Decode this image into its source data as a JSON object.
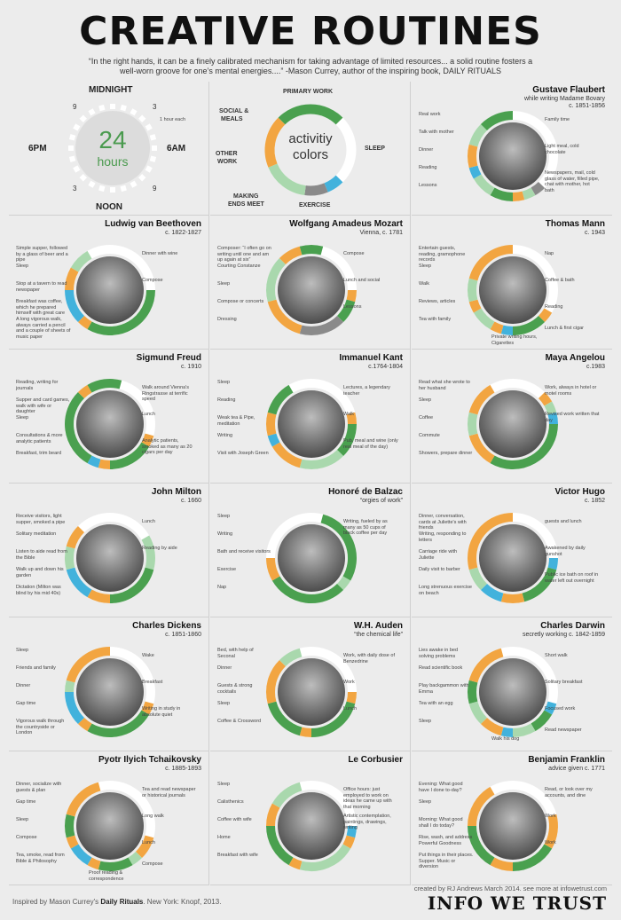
{
  "title": "CREATIVE ROUTINES",
  "quote": "“In the right hands, it can be a finely calibrated mechanism for taking advantage of limited resources... a solid routine fosters a well-worn groove for one’s mental energies....” -Mason Currey, author of the inspiring book, DAILY RITUALS",
  "clock": {
    "top": "MIDNIGHT",
    "bottom": "NOON",
    "left": "6PM",
    "right": "6AM",
    "n9a": "9",
    "n3a": "3",
    "n9b": "9",
    "n3b": "3",
    "big": "24",
    "small": "hours",
    "tick": "1 hour each"
  },
  "legend": {
    "center1": "activitiy",
    "center2": "colors",
    "primary": "PRIMARY WORK",
    "sleep": "SLEEP",
    "social1": "SOCIAL &",
    "social2": "MEALS",
    "other1": "OTHER",
    "other2": "WORK",
    "making1": "MAKING",
    "making2": "ENDS MEET",
    "exercise": "EXERCISE"
  },
  "colors": {
    "sleep": "#ffffff",
    "primary": "#4aa04f",
    "other": "#a9d8ad",
    "social": "#f2a541",
    "exercise": "#42b2dc",
    "ends": "#8a8a8a"
  },
  "people": [
    {
      "name": "Gustave Flaubert",
      "sub": "while writing Madame Bovary",
      "sub2": "c. 1851-1856",
      "notes": [
        "Real work",
        "Talk with mother",
        "Dinner",
        "Reading",
        "Lessons",
        "Family time",
        "Light meal, cold chocolate",
        "Newspapers, mail, cold glass of water, filled pipe, chat with mother, hot bath"
      ],
      "segs": [
        [
          "sleep",
          0,
          9
        ],
        [
          "ends",
          9,
          10
        ],
        [
          "other",
          10,
          11
        ],
        [
          "social",
          11,
          12
        ],
        [
          "primary",
          12,
          14
        ],
        [
          "other",
          14,
          16
        ],
        [
          "exercise",
          16,
          17
        ],
        [
          "social",
          17,
          19
        ],
        [
          "other",
          19,
          21
        ],
        [
          "primary",
          21,
          24
        ]
      ]
    },
    {
      "name": "Ludwig van Beethoven",
      "sub": "c. 1822-1827",
      "sub2": "",
      "notes": [
        "Simple supper, followed by a glass of beer and a pipe",
        "Sleep",
        "Stop at a tavern to read newspaper",
        "Breakfast was coffee, which he prepared himself with great care",
        "A long vigorous walk, always carried a pencil and a couple of sheets of music paper",
        "Dinner with wine",
        "Compose"
      ],
      "segs": [
        [
          "sleep",
          22,
          30
        ],
        [
          "primary",
          6,
          14
        ],
        [
          "social",
          14,
          15
        ],
        [
          "exercise",
          15,
          18
        ],
        [
          "social",
          18,
          20
        ],
        [
          "other",
          20,
          22
        ]
      ]
    },
    {
      "name": "Wolfgang Amadeus Mozart",
      "sub": "Vienna, c. 1781",
      "sub2": "",
      "notes": [
        "Composer: “I often go on writing until one and am up again at six”",
        "Courting Constanze",
        "Sleep",
        "Compose or concerts",
        "Dressing",
        "Compose",
        "Lunch and social",
        "Lessons"
      ],
      "segs": [
        [
          "sleep",
          1,
          6
        ],
        [
          "social",
          6,
          7
        ],
        [
          "primary",
          7,
          9
        ],
        [
          "ends",
          9,
          13
        ],
        [
          "social",
          13,
          17
        ],
        [
          "other",
          17,
          21
        ],
        [
          "social",
          21,
          23
        ],
        [
          "primary",
          23,
          25
        ]
      ]
    },
    {
      "name": "Thomas Mann",
      "sub": "c. 1943",
      "sub2": "",
      "notes": [
        "Entertain guests, reading, gramophone records",
        "Sleep",
        "Walk",
        "Reviews, articles",
        "Tea with family",
        "Nap",
        "Coffee & bath",
        "Reading",
        "Lunch & first cigar",
        "Private writing hours, Cigarettes"
      ],
      "segs": [
        [
          "sleep",
          0,
          8
        ],
        [
          "social",
          8,
          9
        ],
        [
          "primary",
          9,
          12
        ],
        [
          "exercise",
          12,
          13
        ],
        [
          "social",
          13,
          14
        ],
        [
          "other",
          14,
          16
        ],
        [
          "social",
          16,
          17
        ],
        [
          "other",
          17,
          19
        ],
        [
          "social",
          19,
          24
        ]
      ]
    },
    {
      "name": "Sigmund Freud",
      "sub": "c. 1910",
      "sub2": "",
      "notes": [
        "Reading, writing for journals",
        "Supper and card games, walk with wife or daughter",
        "Sleep",
        "Consultations & more analytic patients",
        "Breakfast, trim beard",
        "Walk around Vienna's Ringstrasse at terrific speed",
        "Lunch",
        "Analytic patients, smoked as many as 20 cigars per day"
      ],
      "segs": [
        [
          "sleep",
          1,
          7
        ],
        [
          "social",
          7,
          8
        ],
        [
          "primary",
          8,
          12
        ],
        [
          "social",
          12,
          13
        ],
        [
          "exercise",
          13,
          14
        ],
        [
          "primary",
          14,
          21
        ],
        [
          "social",
          21,
          22
        ],
        [
          "primary",
          22,
          25
        ]
      ]
    },
    {
      "name": "Immanuel Kant",
      "sub": "c.1764-1804",
      "sub2": "",
      "notes": [
        "Sleep",
        "Reading",
        "Weak tea & Pipe, meditation",
        "Writing",
        "Visit with Joseph Green",
        "Lectures, a legendary teacher",
        "Walk",
        "Pub, meal and wine (only real meal of the day)"
      ],
      "segs": [
        [
          "sleep",
          22,
          29
        ],
        [
          "social",
          5,
          6
        ],
        [
          "primary",
          6,
          9
        ],
        [
          "other",
          9,
          13
        ],
        [
          "social",
          13,
          16
        ],
        [
          "exercise",
          16,
          17
        ],
        [
          "social",
          17,
          19
        ],
        [
          "primary",
          19,
          22
        ]
      ]
    },
    {
      "name": "Maya Angelou",
      "sub": "c.1983",
      "sub2": "",
      "notes": [
        "Read what she wrote to her husband",
        "Sleep",
        "Coffee",
        "Commute",
        "Showers, prepare dinner",
        "Work, always in hotel or motel rooms",
        "Revised work written that day"
      ],
      "segs": [
        [
          "sleep",
          22,
          27
        ],
        [
          "social",
          3,
          4
        ],
        [
          "other",
          4,
          5
        ],
        [
          "exercise",
          5,
          6
        ],
        [
          "primary",
          6,
          14
        ],
        [
          "social",
          14,
          17
        ],
        [
          "other",
          17,
          19
        ],
        [
          "social",
          19,
          22
        ]
      ]
    },
    {
      "name": "John Milton",
      "sub": "c. 1660",
      "sub2": "",
      "notes": [
        "Receive visitors, light supper, smoked a pipe",
        "Solitary meditation",
        "Listen to aide read from the Bible",
        "Walk up and down his garden",
        "Dictation (Milton was blind by his mid 40s)",
        "Lunch",
        "Reading by aide"
      ],
      "segs": [
        [
          "sleep",
          21,
          28
        ],
        [
          "other",
          4,
          7
        ],
        [
          "primary",
          7,
          12
        ],
        [
          "social",
          12,
          14
        ],
        [
          "exercise",
          14,
          17
        ],
        [
          "other",
          17,
          19
        ],
        [
          "social",
          19,
          21
        ]
      ]
    },
    {
      "name": "Honoré de Balzac",
      "sub": "“orgies of work”",
      "sub2": "",
      "notes": [
        "Sleep",
        "Writing",
        "Bath and receive visitors",
        "Exercise",
        "Nap",
        "Writing, fueled by as many as 50 cups of black coffee per day"
      ],
      "segs": [
        [
          "sleep",
          18,
          25
        ],
        [
          "primary",
          1,
          8
        ],
        [
          "other",
          8,
          9
        ],
        [
          "primary",
          9,
          16
        ],
        [
          "social",
          16,
          18
        ]
      ]
    },
    {
      "name": "Victor Hugo",
      "sub": "c. 1852",
      "sub2": "",
      "notes": [
        "Dinner, conversation, cards at Juliette's with friends",
        "Writing, responding to letters",
        "Carriage ride with Juliette",
        "Daily visit to barber",
        "Long strenuous exercise on beach",
        "guests and lunch",
        "Awakened by daily gunshot",
        "Public ice bath on roof in water left out overnight"
      ],
      "segs": [
        [
          "sleep",
          0,
          6
        ],
        [
          "exercise",
          6,
          7
        ],
        [
          "primary",
          7,
          11
        ],
        [
          "social",
          11,
          13
        ],
        [
          "exercise",
          13,
          15
        ],
        [
          "other",
          15,
          17
        ],
        [
          "social",
          17,
          18
        ],
        [
          "social",
          18,
          24
        ]
      ]
    },
    {
      "name": "Charles Dickens",
      "sub": "c. 1851-1860",
      "sub2": "",
      "notes": [
        "Sleep",
        "Friends and family",
        "Dinner",
        "Gap time",
        "Vigorous walk through the countryside or London",
        "Wake",
        "Breakfast",
        "Writing in study in absolute quiet"
      ],
      "segs": [
        [
          "sleep",
          0,
          7
        ],
        [
          "social",
          7,
          8
        ],
        [
          "primary",
          8,
          14
        ],
        [
          "social",
          14,
          15
        ],
        [
          "exercise",
          15,
          18
        ],
        [
          "other",
          18,
          19
        ],
        [
          "social",
          19,
          24
        ]
      ]
    },
    {
      "name": "W.H. Auden",
      "sub": "“the chemical life”",
      "sub2": "",
      "notes": [
        "Bed, with help of Seconal",
        "Dinner",
        "Guests & strong cocktails",
        "Sleep",
        "Coffee & Crossword",
        "Work, with daily dose of Benzedrine",
        "Work",
        "Lunch"
      ],
      "segs": [
        [
          "sleep",
          23,
          30
        ],
        [
          "social",
          6,
          7
        ],
        [
          "primary",
          7,
          12
        ],
        [
          "social",
          12,
          13
        ],
        [
          "primary",
          13,
          17
        ],
        [
          "social",
          17,
          21
        ],
        [
          "other",
          21,
          23
        ]
      ]
    },
    {
      "name": "Charles Darwin",
      "sub": "secretly working c. 1842-1859",
      "sub2": "",
      "notes": [
        "Lies awake in bed solving problems",
        "Read scientific book",
        "Play backgammon with Emma",
        "Tea with an egg",
        "Sleep",
        "Short walk",
        "Solitary breakfast",
        "Focused work",
        "Read newspaper",
        "Walk his dog"
      ],
      "segs": [
        [
          "sleep",
          23,
          31
        ],
        [
          "exercise",
          7,
          8
        ],
        [
          "primary",
          8,
          10
        ],
        [
          "other",
          10,
          12
        ],
        [
          "exercise",
          12,
          13
        ],
        [
          "social",
          13,
          15
        ],
        [
          "other",
          15,
          17
        ],
        [
          "primary",
          17,
          19
        ],
        [
          "social",
          19,
          23
        ]
      ]
    },
    {
      "name": "Pyotr Ilyich Tchaikovsky",
      "sub": "c. 1885-1893",
      "sub2": "",
      "notes": [
        "Dinner, socialize with guests & plan",
        "Gap time",
        "Sleep",
        "Compose",
        "Tea, smoke, read from Bible & Philosophy",
        "Tea and read newspaper or historical journals",
        "Long walk",
        "Lunch",
        "Compose",
        "Proof reading & correspondence"
      ],
      "segs": [
        [
          "sleep",
          23,
          31
        ],
        [
          "social",
          7,
          9
        ],
        [
          "other",
          9,
          10
        ],
        [
          "primary",
          10,
          13
        ],
        [
          "social",
          13,
          14
        ],
        [
          "exercise",
          14,
          16
        ],
        [
          "social",
          16,
          17
        ],
        [
          "primary",
          17,
          19
        ],
        [
          "social",
          19,
          23
        ]
      ]
    },
    {
      "name": "Le Corbusier",
      "sub": "",
      "sub2": "",
      "notes": [
        "Sleep",
        "Calisthenics",
        "Coffee with wife",
        "Home",
        "Breakfast with wife",
        "Office hours: just employed to work on ideas he came up with that morning",
        "Artistic contemplation, paintings, drawings, writing"
      ],
      "segs": [
        [
          "sleep",
          23,
          30
        ],
        [
          "exercise",
          6,
          7
        ],
        [
          "social",
          7,
          8
        ],
        [
          "other",
          8,
          13
        ],
        [
          "social",
          13,
          14
        ],
        [
          "primary",
          14,
          18
        ],
        [
          "social",
          18,
          20
        ],
        [
          "other",
          20,
          23
        ]
      ]
    },
    {
      "name": "Benjamin Franklin",
      "sub": "advice given c. 1771",
      "sub2": "",
      "notes": [
        "Evening: What good have I done to-day?",
        "Sleep",
        "Morning: What good shall I do today?",
        "Rise, wash, and address Powerful Goodness",
        "Put things in their places. Supper. Music or diversion",
        "Read, or look over my accounts, and dine",
        "Work",
        "Work"
      ],
      "segs": [
        [
          "sleep",
          22,
          29
        ],
        [
          "social",
          5,
          8
        ],
        [
          "primary",
          8,
          12
        ],
        [
          "social",
          12,
          14
        ],
        [
          "primary",
          14,
          18
        ],
        [
          "social",
          18,
          22
        ]
      ]
    }
  ],
  "footer": {
    "left_pre": "Inspired by Mason Currey's ",
    "left_book": "Daily Rituals",
    "left_post": ". New York: Knopf, 2013.",
    "credit": "created by RJ Andrews March 2014. see more at infowetrust.com",
    "brand": "INFO WE TRUST"
  }
}
